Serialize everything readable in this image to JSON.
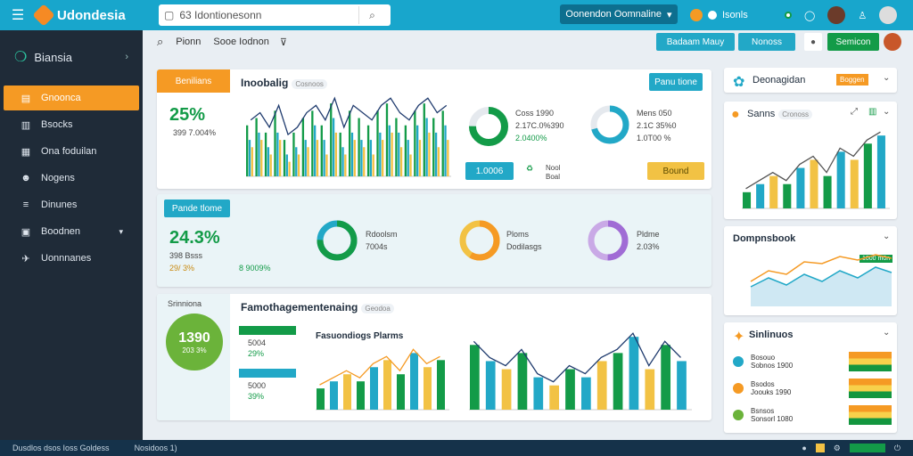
{
  "brand": {
    "name": "Udondesia"
  },
  "search": {
    "value": "63 Idontionesonn",
    "placeholder": ""
  },
  "header": {
    "dropdown_label": "Oonendon Oomnaline",
    "user_label": "Isonls"
  },
  "sidebar": {
    "title": "Biansia",
    "items": [
      {
        "label": "Gnoonca",
        "icon": "grid-icon",
        "active": true
      },
      {
        "label": "Bsocks",
        "icon": "book-icon"
      },
      {
        "label": "Ona foduilan",
        "icon": "table-icon"
      },
      {
        "label": "Nogens",
        "icon": "users-icon"
      },
      {
        "label": "Dinunes",
        "icon": "list-icon"
      },
      {
        "label": "Boodnen",
        "icon": "doc-icon",
        "has_arrow": true
      },
      {
        "label": "Uonnnanes",
        "icon": "rocket-icon"
      }
    ]
  },
  "subbar": {
    "label1": "Pionn",
    "label2": "Sooe Iodnon",
    "btn1": "Badaam Mauy",
    "btn2": "Nonoss",
    "btn3": "Semicon"
  },
  "card1": {
    "tag": "Benilians",
    "big": "25%",
    "sub": "399 7.004%",
    "title": "Inoobalig",
    "pill": "Cosnoos",
    "action": "Panu tione",
    "stat1": {
      "l1": "Coss 1990",
      "l2": "2.17C.0%390",
      "l3": "2.0400%"
    },
    "stat2": {
      "l1": "Mens 050",
      "l2": "2.1C 35%0",
      "l3": "1.0T00 %"
    },
    "b1": "1.0006",
    "b2": "Nool",
    "b3": "Boal",
    "b4": "Bound"
  },
  "card2": {
    "tag": "Pande tlome",
    "big": "24.3%",
    "s1": "398 Bsss",
    "s2": "29/ 3%",
    "s3": "8 9009%",
    "d1": {
      "l1": "Rdoolsm",
      "l2": "7004s"
    },
    "d2": {
      "l1": "Ploms",
      "l2": "Dodilasgs"
    },
    "d3": {
      "l1": "Pldme",
      "l2": "2.03%"
    }
  },
  "card3": {
    "side_title": "Srinniona",
    "circle_big": "1390",
    "circle_sub": "203 3%",
    "title": "Famothagementenaing",
    "pill": "Geodoa",
    "sub_title": "Fasuondiogs Plarms",
    "v1": "5004",
    "v2": "29%",
    "v3": "5000",
    "v4": "39%"
  },
  "right": {
    "r1": {
      "title": "Deonagidan",
      "badge": "Boggen"
    },
    "r2": {
      "title": "Sanns",
      "pill": "Cronoss"
    },
    "r3": {
      "title": "Dompnsbook",
      "legend": "1000 m0n"
    },
    "r4": {
      "title": "Sinlinuos",
      "rows": [
        {
          "a": "Bosouo",
          "b": "Sobnos 1900"
        },
        {
          "a": "Bsodos",
          "b": "Joouks 1990"
        },
        {
          "a": "Bsnsos",
          "b": "Sonsorl 1080"
        }
      ]
    }
  },
  "footer": {
    "left": "Dusdlos dsos Ioss Goldess",
    "mid": "Nosidoos 1)"
  },
  "colors": {
    "accent": "#18a6cc",
    "orange": "#f59a24",
    "green": "#139b48",
    "teal": "#22a8c7",
    "yellow": "#f2c244"
  },
  "chart_data": [
    {
      "type": "bar",
      "series": [
        {
          "values": [
            7,
            8,
            6,
            9,
            5,
            6,
            8,
            9,
            7,
            10,
            6,
            9,
            8,
            7,
            9,
            10,
            8,
            7,
            9,
            10,
            8,
            9
          ]
        },
        {
          "values": [
            5,
            6,
            4,
            6,
            3,
            4,
            5,
            7,
            5,
            8,
            4,
            6,
            5,
            5,
            6,
            7,
            6,
            5,
            7,
            8,
            6,
            7
          ]
        },
        {
          "values": [
            4,
            5,
            3,
            5,
            2,
            3,
            4,
            5,
            3,
            6,
            3,
            5,
            4,
            3,
            5,
            6,
            4,
            3,
            5,
            6,
            4,
            5
          ]
        }
      ]
    },
    {
      "type": "bar",
      "values": [
        3,
        4,
        6,
        5,
        6,
        7,
        5,
        8,
        6,
        9,
        8,
        10
      ]
    },
    {
      "type": "bar",
      "values": [
        3,
        4,
        5,
        4,
        6,
        7,
        5,
        8,
        6,
        7
      ]
    },
    {
      "type": "bar",
      "values": [
        8,
        6,
        5,
        7,
        4,
        3,
        5,
        4,
        6,
        7,
        9,
        5,
        8,
        6
      ]
    },
    {
      "type": "bar",
      "values": [
        2,
        3,
        4,
        3,
        5,
        6,
        4,
        7,
        6,
        8,
        9
      ]
    }
  ]
}
